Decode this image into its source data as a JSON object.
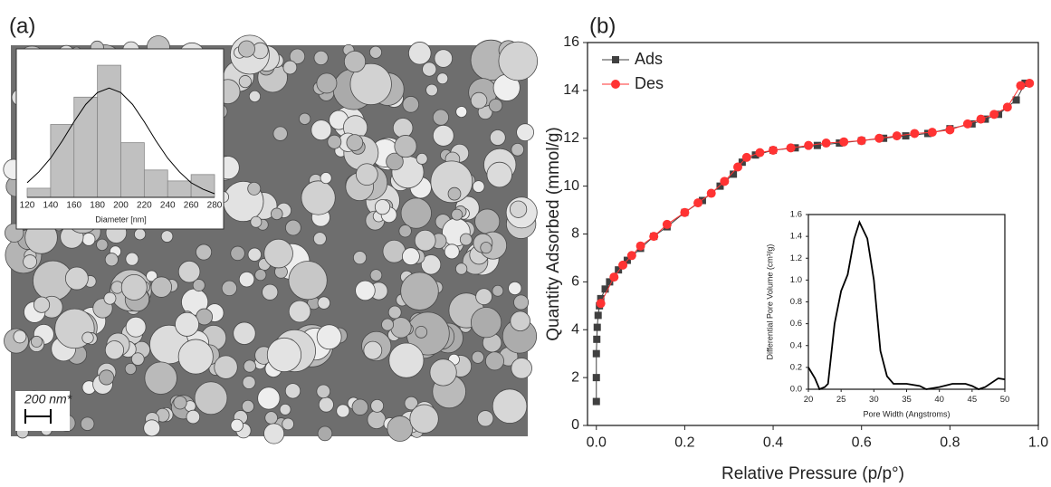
{
  "chart_data": [
    {
      "type": "histogram",
      "panel_label": "(a)",
      "scale_bar": "200 nm*",
      "xlabel": "Diameter [nm]",
      "bins": [
        120,
        140,
        160,
        180,
        200,
        220,
        240,
        260,
        280
      ],
      "values": [
        1,
        8,
        11,
        14.5,
        6,
        3,
        1.8,
        2.5
      ],
      "color": "#c0c0c0",
      "fit": {
        "x": [
          120,
          130,
          140,
          150,
          160,
          170,
          180,
          190,
          200,
          210,
          220,
          230,
          240,
          250,
          260,
          270,
          280
        ],
        "values": [
          1.6,
          2.8,
          4.3,
          6.2,
          8.3,
          10.2,
          11.5,
          12,
          11.5,
          10.2,
          8.3,
          6.2,
          4.3,
          2.8,
          1.6,
          0.9,
          0.4
        ],
        "color": "#000000"
      },
      "xlim": [
        120,
        280
      ],
      "ylim": [
        0,
        16
      ],
      "xticks": [
        120,
        140,
        160,
        180,
        200,
        220,
        240,
        260,
        280
      ]
    },
    {
      "type": "line",
      "panel_label": "(b)",
      "xlabel": "Relative Pressure (p/p°)",
      "ylabel": "Quantity Adsorbed (mmol/g)",
      "legend": "top-left",
      "series": [
        {
          "name": "Ads",
          "color": "#404040",
          "marker": "square",
          "x": [
            0.0,
            0.0,
            0.0,
            0.001,
            0.002,
            0.004,
            0.007,
            0.01,
            0.02,
            0.03,
            0.05,
            0.07,
            0.1,
            0.13,
            0.16,
            0.2,
            0.24,
            0.28,
            0.31,
            0.33,
            0.36,
            0.4,
            0.45,
            0.5,
            0.55,
            0.6,
            0.65,
            0.7,
            0.75,
            0.8,
            0.85,
            0.88,
            0.91,
            0.95,
            0.97
          ],
          "values": [
            1.0,
            2.0,
            3.0,
            3.6,
            4.1,
            4.6,
            5.0,
            5.3,
            5.7,
            6.0,
            6.5,
            6.9,
            7.4,
            7.9,
            8.3,
            8.9,
            9.4,
            10.0,
            10.5,
            11.0,
            11.3,
            11.5,
            11.6,
            11.7,
            11.8,
            11.9,
            12.0,
            12.1,
            12.2,
            12.4,
            12.6,
            12.8,
            13.0,
            13.6,
            14.3
          ]
        },
        {
          "name": "Des",
          "color": "#ff3333",
          "marker": "circle",
          "x": [
            0.01,
            0.04,
            0.06,
            0.08,
            0.1,
            0.13,
            0.16,
            0.2,
            0.23,
            0.26,
            0.29,
            0.32,
            0.34,
            0.37,
            0.4,
            0.44,
            0.48,
            0.52,
            0.56,
            0.6,
            0.64,
            0.68,
            0.72,
            0.76,
            0.8,
            0.84,
            0.87,
            0.9,
            0.93,
            0.96,
            0.98
          ],
          "values": [
            5.1,
            6.2,
            6.7,
            7.1,
            7.5,
            7.9,
            8.4,
            8.9,
            9.3,
            9.7,
            10.2,
            10.8,
            11.2,
            11.4,
            11.5,
            11.6,
            11.7,
            11.8,
            11.85,
            11.9,
            12.0,
            12.1,
            12.2,
            12.25,
            12.35,
            12.6,
            12.8,
            13.0,
            13.3,
            14.2,
            14.3
          ]
        }
      ],
      "xlim": [
        -0.02,
        1.0
      ],
      "ylim": [
        0,
        16
      ],
      "xticks": [
        {
          "value": 0,
          "label": "0.0"
        },
        {
          "value": 0.2,
          "label": "0.2"
        },
        {
          "value": 0.4,
          "label": "0.4"
        },
        {
          "value": 0.6,
          "label": "0.6"
        },
        {
          "value": 0.8,
          "label": "0.8"
        },
        {
          "value": 1,
          "label": "1.0"
        }
      ],
      "yticks": [
        0,
        2,
        4,
        6,
        8,
        10,
        12,
        14,
        16
      ]
    },
    {
      "type": "line",
      "xlabel": "Pore Width (Angstroms)",
      "ylabel": "Differential Pore Volume (cm³/g)",
      "series": [
        {
          "color": "#000000",
          "x": [
            20,
            21,
            21.7,
            22.5,
            23,
            24,
            25,
            26,
            27,
            27.8,
            29,
            30,
            31,
            32,
            33,
            35,
            37,
            38,
            40,
            42,
            44,
            45,
            46,
            47,
            49,
            50
          ],
          "values": [
            0.2,
            0.1,
            0.0,
            0.02,
            0.05,
            0.6,
            0.9,
            1.05,
            1.38,
            1.53,
            1.38,
            1.0,
            0.35,
            0.12,
            0.05,
            0.05,
            0.03,
            0.0,
            0.02,
            0.05,
            0.05,
            0.03,
            0.0,
            0.02,
            0.1,
            0.09
          ]
        }
      ],
      "xlim": [
        20,
        50
      ],
      "ylim": [
        0,
        1.6
      ],
      "xticks": [
        20,
        25,
        30,
        35,
        40,
        45,
        50
      ],
      "yticks": [
        {
          "value": 0,
          "label": "0.0"
        },
        {
          "value": 0.2,
          "label": "0.2"
        },
        {
          "value": 0.4,
          "label": "0.4"
        },
        {
          "value": 0.6,
          "label": "0.6"
        },
        {
          "value": 0.8,
          "label": "0.8"
        },
        {
          "value": 1,
          "label": "1.0"
        },
        {
          "value": 1.2,
          "label": "1.2"
        },
        {
          "value": 1.4,
          "label": "1.4"
        },
        {
          "value": 1.6,
          "label": "1.6"
        }
      ]
    }
  ]
}
